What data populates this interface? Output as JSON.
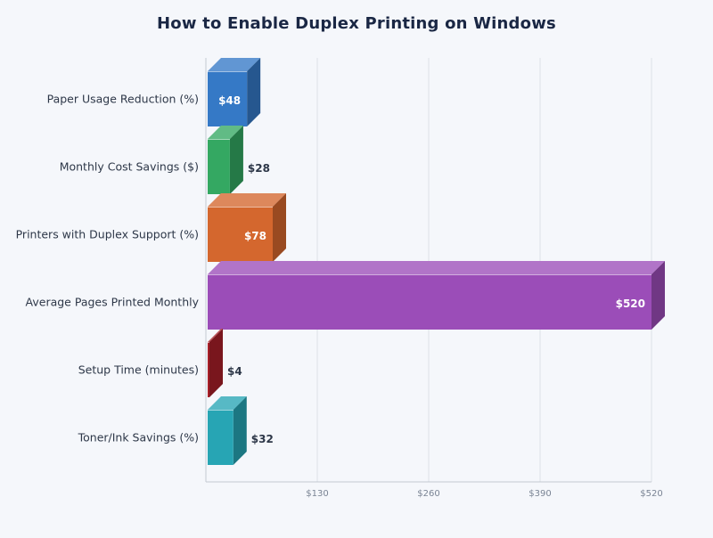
{
  "title": "How to Enable Duplex Printing on Windows",
  "chart_data": {
    "type": "bar",
    "orientation": "horizontal",
    "style": "3d",
    "title": "How to Enable Duplex Printing on Windows",
    "xlabel": "",
    "ylabel": "",
    "categories": [
      "Paper Usage Reduction (%)",
      "Monthly Cost Savings ($)",
      "Printers with Duplex Support (%)",
      "Average Pages Printed Monthly",
      "Setup Time (minutes)",
      "Toner/Ink Savings (%)"
    ],
    "values": [
      48,
      28,
      78,
      520,
      4,
      32
    ],
    "data_labels": [
      "$48",
      "$28",
      "$78",
      "$520",
      "$4",
      "$32"
    ],
    "colors": [
      "#3579c6",
      "#34a862",
      "#d4672e",
      "#9b4db8",
      "#a81f28",
      "#27a5b4"
    ],
    "xlim": [
      0,
      520
    ],
    "x_ticks": [
      130,
      260,
      390,
      520
    ],
    "x_tick_labels": [
      "$130",
      "$260",
      "$390",
      "$520"
    ],
    "grid": true,
    "legend": "none"
  }
}
